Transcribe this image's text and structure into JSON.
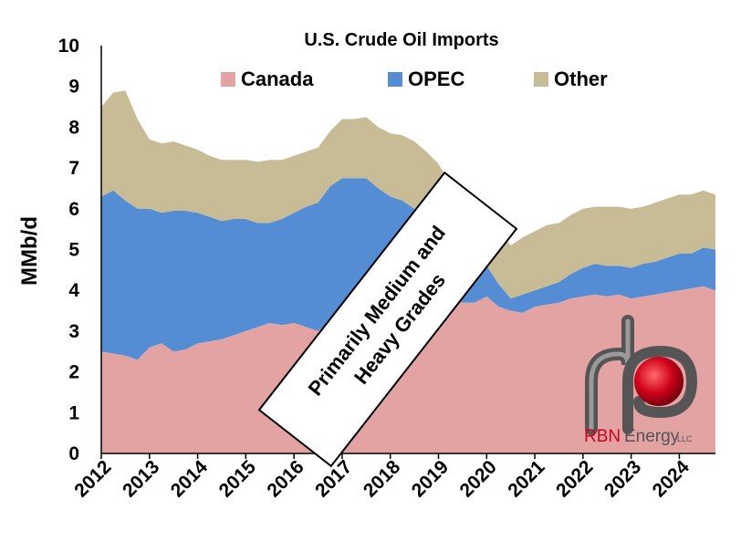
{
  "chart_data": {
    "type": "area",
    "stacked": true,
    "title": "U.S. Crude Oil Imports",
    "ylabel": "MMb/d",
    "xlabel": "",
    "ylim": [
      0,
      10
    ],
    "yticks": [
      0,
      1,
      2,
      3,
      4,
      5,
      6,
      7,
      8,
      9,
      10
    ],
    "xlim": [
      2012.0,
      2024.75
    ],
    "xticks": [
      "2012",
      "2013",
      "2014",
      "2015",
      "2016",
      "2017",
      "2018",
      "2019",
      "2020",
      "2021",
      "2022",
      "2023",
      "2024"
    ],
    "grid": false,
    "legend_position": "top",
    "x": [
      2012.0,
      2012.25,
      2012.5,
      2012.75,
      2013.0,
      2013.25,
      2013.5,
      2013.75,
      2014.0,
      2014.25,
      2014.5,
      2014.75,
      2015.0,
      2015.25,
      2015.5,
      2015.75,
      2016.0,
      2016.25,
      2016.5,
      2016.75,
      2017.0,
      2017.25,
      2017.5,
      2017.75,
      2018.0,
      2018.25,
      2018.5,
      2018.75,
      2019.0,
      2019.25,
      2019.5,
      2019.75,
      2020.0,
      2020.25,
      2020.5,
      2020.75,
      2021.0,
      2021.25,
      2021.5,
      2021.75,
      2022.0,
      2022.25,
      2022.5,
      2022.75,
      2023.0,
      2023.25,
      2023.5,
      2023.75,
      2024.0,
      2024.25,
      2024.5,
      2024.75
    ],
    "series": [
      {
        "name": "Canada",
        "color": "#e3a3a3",
        "values": [
          2.5,
          2.45,
          2.4,
          2.3,
          2.6,
          2.7,
          2.5,
          2.55,
          2.7,
          2.75,
          2.8,
          2.9,
          3.0,
          3.1,
          3.2,
          3.15,
          3.2,
          3.1,
          3.0,
          3.2,
          3.3,
          3.35,
          3.4,
          3.45,
          3.6,
          3.6,
          3.7,
          3.75,
          3.8,
          3.75,
          3.7,
          3.7,
          3.85,
          3.6,
          3.5,
          3.45,
          3.6,
          3.65,
          3.7,
          3.8,
          3.85,
          3.9,
          3.85,
          3.9,
          3.8,
          3.85,
          3.9,
          3.95,
          4.0,
          4.05,
          4.1,
          4.0
        ]
      },
      {
        "name": "OPEC",
        "color": "#548dd4",
        "values": [
          3.8,
          4.0,
          3.8,
          3.7,
          3.4,
          3.2,
          3.45,
          3.4,
          3.2,
          3.05,
          2.9,
          2.85,
          2.75,
          2.55,
          2.45,
          2.6,
          2.7,
          2.95,
          3.15,
          3.35,
          3.45,
          3.4,
          3.35,
          3.05,
          2.7,
          2.6,
          2.3,
          2.05,
          1.7,
          1.3,
          1.0,
          0.85,
          0.75,
          0.55,
          0.3,
          0.45,
          0.4,
          0.45,
          0.5,
          0.6,
          0.7,
          0.75,
          0.75,
          0.7,
          0.75,
          0.8,
          0.8,
          0.85,
          0.9,
          0.85,
          0.95,
          1.0
        ]
      },
      {
        "name": "Other",
        "color": "#c8bc96",
        "values": [
          2.2,
          2.4,
          2.7,
          2.2,
          1.7,
          1.7,
          1.7,
          1.6,
          1.55,
          1.5,
          1.5,
          1.45,
          1.45,
          1.5,
          1.55,
          1.45,
          1.4,
          1.35,
          1.35,
          1.35,
          1.45,
          1.45,
          1.5,
          1.5,
          1.55,
          1.6,
          1.65,
          1.6,
          1.6,
          1.55,
          1.45,
          1.35,
          1.3,
          1.3,
          1.3,
          1.4,
          1.45,
          1.5,
          1.45,
          1.45,
          1.45,
          1.4,
          1.45,
          1.45,
          1.45,
          1.4,
          1.45,
          1.45,
          1.45,
          1.45,
          1.4,
          1.35
        ]
      }
    ],
    "annotations": [
      {
        "text_line1": "Primarily Medium and",
        "text_line2": "Heavy Grades",
        "anchor_x": 2018.5,
        "anchor_y": 3.0
      }
    ]
  },
  "logo": {
    "brand_text": "RBN",
    "secondary_text": "Energy",
    "suffix_text": "LLC",
    "brand_color": "#d0021b",
    "pipe_color": "#6b6b6b"
  }
}
